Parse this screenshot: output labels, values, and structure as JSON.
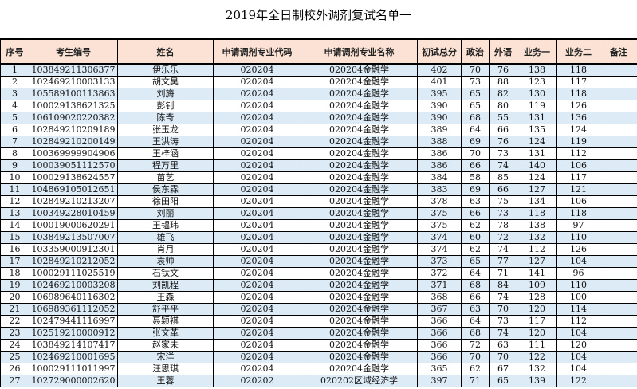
{
  "title": "2019年全日制校外调剂复试名单一",
  "columns": [
    "序号",
    "考生编号",
    "姓名",
    "申请调剂专业代码",
    "申请调剂专业名称",
    "初试总分",
    "政治",
    "外语",
    "业务一",
    "业务二",
    "备注"
  ],
  "rows": [
    [
      "1",
      "103849211306377",
      "伊乐乐",
      "020204",
      "020204金融学",
      "402",
      "70",
      "76",
      "138",
      "118",
      ""
    ],
    [
      "2",
      "102469210003133",
      "胡文昊",
      "020204",
      "020204金融学",
      "401",
      "73",
      "88",
      "123",
      "117",
      ""
    ],
    [
      "3",
      "105589100113863",
      "刘旖",
      "020204",
      "020204金融学",
      "395",
      "65",
      "82",
      "130",
      "118",
      ""
    ],
    [
      "4",
      "100029138621325",
      "彭钊",
      "020204",
      "020204金融学",
      "390",
      "65",
      "80",
      "119",
      "126",
      ""
    ],
    [
      "5",
      "106109020220382",
      "陈奇",
      "020204",
      "020204金融学",
      "390",
      "68",
      "55",
      "131",
      "136",
      ""
    ],
    [
      "6",
      "102849210209189",
      "张玉龙",
      "020204",
      "020204金融学",
      "389",
      "64",
      "66",
      "135",
      "124",
      ""
    ],
    [
      "7",
      "102849210200149",
      "王洪涛",
      "020204",
      "020204金融学",
      "388",
      "69",
      "76",
      "124",
      "119",
      ""
    ],
    [
      "8",
      "100369999904906",
      "王梓涵",
      "020204",
      "020204金融学",
      "386",
      "70",
      "73",
      "131",
      "112",
      ""
    ],
    [
      "9",
      "100039051112570",
      "程万里",
      "020204",
      "020204金融学",
      "386",
      "66",
      "74",
      "140",
      "106",
      ""
    ],
    [
      "10",
      "100029138624557",
      "苗艺",
      "020204",
      "020204金融学",
      "384",
      "58",
      "85",
      "124",
      "117",
      ""
    ],
    [
      "11",
      "104869105012651",
      "侯东霖",
      "020204",
      "020204金融学",
      "383",
      "69",
      "66",
      "127",
      "121",
      ""
    ],
    [
      "12",
      "102849210213207",
      "徐田阳",
      "020204",
      "020204金融学",
      "378",
      "63",
      "75",
      "134",
      "106",
      ""
    ],
    [
      "13",
      "100349228010459",
      "刘丽",
      "020204",
      "020204金融学",
      "375",
      "66",
      "73",
      "118",
      "118",
      ""
    ],
    [
      "14",
      "100019000620291",
      "王韫玮",
      "020204",
      "020204金融学",
      "375",
      "62",
      "78",
      "138",
      "97",
      ""
    ],
    [
      "15",
      "103849213507007",
      "雄飞",
      "020204",
      "020204金融学",
      "374",
      "60",
      "72",
      "132",
      "110",
      ""
    ],
    [
      "16",
      "103359000912301",
      "肖月",
      "020204",
      "020204金融学",
      "374",
      "62",
      "74",
      "112",
      "126",
      ""
    ],
    [
      "17",
      "102849210212052",
      "袁帅",
      "020204",
      "020204金融学",
      "373",
      "65",
      "77",
      "127",
      "104",
      ""
    ],
    [
      "18",
      "100029111025519",
      "石钛文",
      "020204",
      "020204金融学",
      "372",
      "64",
      "71",
      "141",
      "96",
      ""
    ],
    [
      "19",
      "102469210003208",
      "刘凯程",
      "020204",
      "020204金融学",
      "371",
      "68",
      "84",
      "109",
      "110",
      ""
    ],
    [
      "20",
      "106989640116302",
      "王森",
      "020204",
      "020204金融学",
      "368",
      "66",
      "74",
      "128",
      "100",
      ""
    ],
    [
      "21",
      "106989361112052",
      "舒平平",
      "020204",
      "020204金融学",
      "367",
      "63",
      "70",
      "120",
      "114",
      ""
    ],
    [
      "22",
      "102479441116997",
      "聂颖祺",
      "020204",
      "020204金融学",
      "366",
      "64",
      "73",
      "117",
      "112",
      ""
    ],
    [
      "23",
      "102519210000912",
      "张文革",
      "020204",
      "020204金融学",
      "366",
      "68",
      "74",
      "120",
      "104",
      ""
    ],
    [
      "24",
      "103849214107417",
      "赵家未",
      "020204",
      "020204金融学",
      "366",
      "72",
      "63",
      "111",
      "120",
      ""
    ],
    [
      "25",
      "102469210001695",
      "宋洋",
      "020204",
      "020204金融学",
      "366",
      "70",
      "70",
      "122",
      "104",
      ""
    ],
    [
      "26",
      "100029111011997",
      "汪思琪",
      "020204",
      "020204金融学",
      "365",
      "62",
      "67",
      "132",
      "104",
      ""
    ],
    [
      "27",
      "102729000002620",
      "王蓉",
      "020202",
      "020202区域经济学",
      "397",
      "71",
      "65",
      "139",
      "122",
      ""
    ]
  ]
}
